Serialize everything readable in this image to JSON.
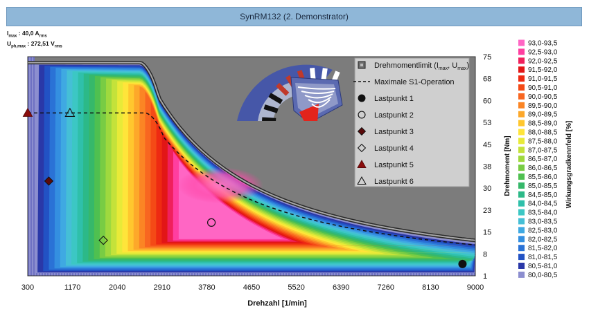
{
  "title": "SynRM132 (2. Demonstrator)",
  "annotations": {
    "imax": {
      "symbol": "I",
      "sub": "max",
      "value": " : 40,0 A",
      "unit_sub": "rms"
    },
    "uph": {
      "symbol": "U",
      "sub": "ph,max",
      "value": " : 272,51 V",
      "unit_sub": "rms"
    }
  },
  "chart_data": {
    "type": "heatmap",
    "title": "SynRM132 (2. Demonstrator)",
    "xlabel": "Drehzahl [1/min]",
    "ylabel": "Drehmoment [Nm]",
    "colorbar_label": "Wirkungsgradkennfeld [%]",
    "x_ticks": [
      "300",
      "1170",
      "2040",
      "2910",
      "3780",
      "4650",
      "5520",
      "6390",
      "7260",
      "8130",
      "9000"
    ],
    "y_ticks": [
      "1",
      "8",
      "15",
      "23",
      "30",
      "38",
      "45",
      "53",
      "60",
      "68",
      "75"
    ],
    "xlim": [
      300,
      9000
    ],
    "ylim": [
      1,
      75
    ],
    "torque_limit": {
      "T_max": 73,
      "corner_speed": 2500,
      "decay_exponent": 1.35
    },
    "s1_operation": {
      "T_max": 56,
      "corner_speed": 2600,
      "decay_exponent": 1.28
    },
    "efficiency_bands": [
      {
        "range": "93,0-93,5",
        "color": "#ff66c4"
      },
      {
        "range": "92,5-93,0",
        "color": "#ff3ea0"
      },
      {
        "range": "92,0-92,5",
        "color": "#f0205c"
      },
      {
        "range": "91,5-92,0",
        "color": "#e21616"
      },
      {
        "range": "91,0-91,5",
        "color": "#ee2a12"
      },
      {
        "range": "90,5-91,0",
        "color": "#f44a16"
      },
      {
        "range": "90,0-90,5",
        "color": "#f86620"
      },
      {
        "range": "89,5-90,0",
        "color": "#fb8524"
      },
      {
        "range": "89,0-89,5",
        "color": "#fda82a"
      },
      {
        "range": "88,5-89,0",
        "color": "#ffc72e"
      },
      {
        "range": "88,0-88,5",
        "color": "#ffe53a"
      },
      {
        "range": "87,5-88,0",
        "color": "#e8ea38"
      },
      {
        "range": "87,0-87,5",
        "color": "#c4e23a"
      },
      {
        "range": "86,5-87,0",
        "color": "#9fd93e"
      },
      {
        "range": "86,0-86,5",
        "color": "#78cc44"
      },
      {
        "range": "85,5-86,0",
        "color": "#4fc050"
      },
      {
        "range": "85,0-85,5",
        "color": "#36b86a"
      },
      {
        "range": "84,5-85,0",
        "color": "#2cb988"
      },
      {
        "range": "84,0-84,5",
        "color": "#2fc0aa"
      },
      {
        "range": "83,5-84,0",
        "color": "#3cc7c4"
      },
      {
        "range": "83,0-83,5",
        "color": "#45bfd6"
      },
      {
        "range": "82,5-83,0",
        "color": "#3fa9e2"
      },
      {
        "range": "82,0-82,5",
        "color": "#348fe0"
      },
      {
        "range": "81,5-82,0",
        "color": "#2a72d6"
      },
      {
        "range": "81,0-81,5",
        "color": "#2252c4"
      },
      {
        "range": "80,5-81,0",
        "color": "#2a38a8"
      },
      {
        "range": "80,0-80,5",
        "color": "#8c8ecf"
      }
    ],
    "legend": [
      {
        "label": "Drehmomentlimit (I",
        "sub1": "max",
        "mid": ", U",
        "sub2": "max",
        "end": ")",
        "marker": "gray-box"
      },
      {
        "label": "Maximale S1-Operation",
        "marker": "dashed-line"
      },
      {
        "label": "Lastpunkt 1",
        "marker": "filled-circle"
      },
      {
        "label": "Lastpunkt 2",
        "marker": "open-circle"
      },
      {
        "label": "Lastpunkt 3",
        "marker": "filled-diamond"
      },
      {
        "label": "Lastpunkt 4",
        "marker": "open-diamond"
      },
      {
        "label": "Lastpunkt 5",
        "marker": "filled-triangle"
      },
      {
        "label": "Lastpunkt 6",
        "marker": "open-triangle"
      }
    ],
    "load_points": [
      {
        "name": "Lastpunkt 1",
        "x": 8750,
        "y": 5,
        "marker": "filled-circle"
      },
      {
        "name": "Lastpunkt 2",
        "x": 3870,
        "y": 19,
        "marker": "open-circle"
      },
      {
        "name": "Lastpunkt 3",
        "x": 710,
        "y": 33,
        "marker": "filled-diamond"
      },
      {
        "name": "Lastpunkt 4",
        "x": 1770,
        "y": 13,
        "marker": "open-diamond"
      },
      {
        "name": "Lastpunkt 5",
        "x": 300,
        "y": 56,
        "marker": "filled-triangle"
      },
      {
        "name": "Lastpunkt 6",
        "x": 1120,
        "y": 56,
        "marker": "open-triangle"
      }
    ]
  }
}
